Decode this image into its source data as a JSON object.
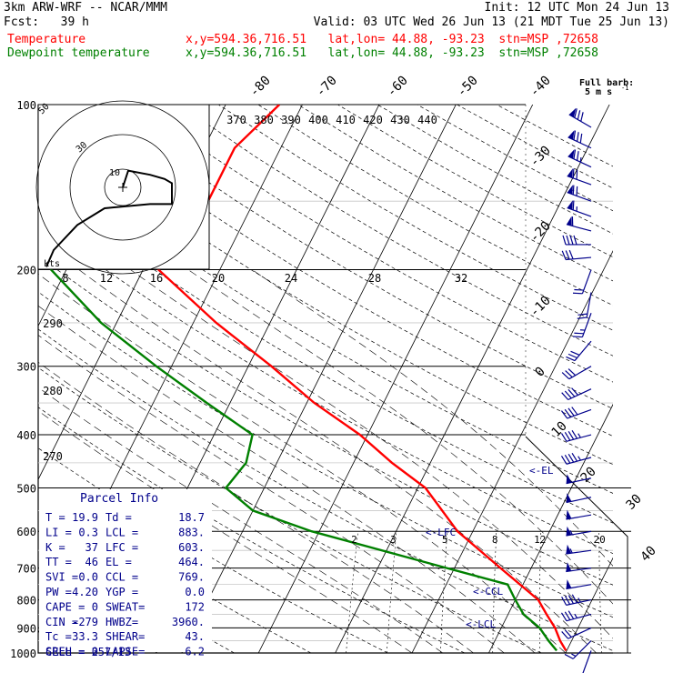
{
  "header": {
    "model": "3km ARW-WRF -- NCAR/MMM",
    "init": "Init: 12 UTC Mon 24 Jun 13",
    "fcst": "Fcst:   39 h",
    "valid": "Valid: 03 UTC Wed 26 Jun 13 (21 MDT Tue 25 Jun 13)",
    "temp_label": "Temperature",
    "temp_loc": "x,y=594.36,716.51   lat,lon= 44.88, -93.23  stn=MSP ,72658",
    "dew_label": "Dewpoint temperature",
    "dew_loc": "x,y=594.36,716.51   lat,lon= 44.88, -93.23  stn=MSP ,72658"
  },
  "colors": {
    "temperature": "#ff0000",
    "dewpoint": "#008000",
    "wind": "#00008b",
    "text_blue": "#00008b",
    "axes": "#000000",
    "hodo_label": "#0000aa"
  },
  "chart_data": {
    "type": "line",
    "title": "",
    "ylabel": "",
    "y_scale": "log-pressure",
    "ylim": [
      1000,
      100
    ],
    "xlim": [
      -40,
      40
    ],
    "pressure_labels": [
      "100",
      "200",
      "300",
      "400",
      "500",
      "600",
      "700",
      "800",
      "900",
      "1000"
    ],
    "pressure_values": [
      100,
      200,
      300,
      400,
      500,
      600,
      700,
      800,
      900,
      1000
    ],
    "temp_ticks_top": [
      "-80",
      "-70",
      "-60",
      "-50",
      "-40"
    ],
    "temp_ticks_right": [
      "-30",
      "-20",
      "-10",
      "0",
      "10",
      "20",
      "30",
      "40"
    ],
    "theta_labels": [
      "370",
      "380",
      "390",
      "400",
      "410",
      "420",
      "430",
      "440"
    ],
    "thetae_labels": [
      "290",
      "280",
      "270"
    ],
    "mixing_ratio_labels": [
      "2",
      "3",
      "5",
      "8",
      "12",
      "20"
    ],
    "mixing_ratio_values": [
      2,
      3,
      5,
      8,
      12,
      20
    ],
    "series": [
      {
        "name": "Temperature",
        "points": [
          [
            100,
            -53
          ],
          [
            120,
            -56
          ],
          [
            150,
            -56
          ],
          [
            175,
            -59
          ],
          [
            190,
            -60
          ],
          [
            200,
            -58
          ],
          [
            250,
            -47
          ],
          [
            300,
            -37
          ],
          [
            350,
            -29
          ],
          [
            400,
            -21
          ],
          [
            450,
            -15
          ],
          [
            500,
            -9
          ],
          [
            600,
            -2
          ],
          [
            700,
            6
          ],
          [
            800,
            13
          ],
          [
            850,
            15
          ],
          [
            900,
            17
          ],
          [
            950,
            18.5
          ],
          [
            990,
            19.9
          ]
        ]
      },
      {
        "name": "Dewpoint temperature",
        "points": [
          [
            100,
            -78
          ],
          [
            120,
            -79
          ],
          [
            150,
            -81
          ],
          [
            160,
            -80
          ],
          [
            175,
            -77
          ],
          [
            190,
            -73
          ],
          [
            200,
            -72
          ],
          [
            250,
            -62
          ],
          [
            300,
            -52
          ],
          [
            350,
            -43
          ],
          [
            400,
            -35
          ],
          [
            450,
            -34
          ],
          [
            500,
            -35
          ],
          [
            550,
            -30
          ],
          [
            600,
            -21
          ],
          [
            700,
            -1
          ],
          [
            750,
            8
          ],
          [
            800,
            10
          ],
          [
            850,
            12
          ],
          [
            900,
            15
          ],
          [
            950,
            17
          ],
          [
            990,
            18.7
          ]
        ]
      }
    ],
    "wind_barbs": [
      {
        "p": 110,
        "dir": 300,
        "spd_ms": 40
      },
      {
        "p": 120,
        "dir": 295,
        "spd_ms": 40
      },
      {
        "p": 130,
        "dir": 295,
        "spd_ms": 38
      },
      {
        "p": 140,
        "dir": 290,
        "spd_ms": 37
      },
      {
        "p": 150,
        "dir": 290,
        "spd_ms": 35
      },
      {
        "p": 160,
        "dir": 290,
        "spd_ms": 33
      },
      {
        "p": 170,
        "dir": 285,
        "spd_ms": 30
      },
      {
        "p": 180,
        "dir": 270,
        "spd_ms": 22
      },
      {
        "p": 190,
        "dir": 265,
        "spd_ms": 17
      },
      {
        "p": 200,
        "dir": 200,
        "spd_ms": 10
      },
      {
        "p": 220,
        "dir": 190,
        "spd_ms": 12
      },
      {
        "p": 240,
        "dir": 200,
        "spd_ms": 13
      },
      {
        "p": 270,
        "dir": 220,
        "spd_ms": 15
      },
      {
        "p": 300,
        "dir": 240,
        "spd_ms": 17
      },
      {
        "p": 330,
        "dir": 245,
        "spd_ms": 20
      },
      {
        "p": 360,
        "dir": 250,
        "spd_ms": 22
      },
      {
        "p": 400,
        "dir": 255,
        "spd_ms": 23
      },
      {
        "p": 440,
        "dir": 255,
        "spd_ms": 24
      },
      {
        "p": 480,
        "dir": 258,
        "spd_ms": 25
      },
      {
        "p": 520,
        "dir": 258,
        "spd_ms": 25
      },
      {
        "p": 560,
        "dir": 260,
        "spd_ms": 27
      },
      {
        "p": 600,
        "dir": 260,
        "spd_ms": 28
      },
      {
        "p": 650,
        "dir": 262,
        "spd_ms": 28
      },
      {
        "p": 700,
        "dir": 262,
        "spd_ms": 27
      },
      {
        "p": 750,
        "dir": 260,
        "spd_ms": 25
      },
      {
        "p": 800,
        "dir": 258,
        "spd_ms": 23
      },
      {
        "p": 850,
        "dir": 255,
        "spd_ms": 18
      },
      {
        "p": 900,
        "dir": 245,
        "spd_ms": 12
      },
      {
        "p": 950,
        "dir": 225,
        "spd_ms": 8
      },
      {
        "p": 990,
        "dir": 200,
        "spd_ms": 5
      }
    ],
    "levels": {
      "el": "<-EL",
      "lfc": "<-LFC",
      "ccl": "<-CCL",
      "lcl": "<-LCL"
    },
    "barb_legend": {
      "line1": "Full barb:",
      "line2": "5 m s",
      "exp": "-1"
    },
    "hodograph": {
      "units": "kts",
      "ring_labels": [
        "10",
        "30",
        "50"
      ],
      "points": [
        [
          0,
          0
        ],
        [
          3,
          -8
        ],
        [
          15,
          -6
        ],
        [
          23,
          -4
        ],
        [
          27,
          -2
        ],
        [
          27,
          8
        ],
        [
          15,
          8
        ],
        [
          -10,
          10
        ],
        [
          -25,
          18
        ],
        [
          -38,
          30
        ],
        [
          -42,
          38
        ]
      ]
    },
    "isotherm_labels_box": [
      "8",
      "12",
      "16",
      "20",
      "24",
      "28",
      "32"
    ]
  },
  "parcel": {
    "title": "Parcel Info",
    "rows": [
      [
        "T   =",
        "19.9",
        "Td =",
        "18.7"
      ],
      [
        "LI  =",
        "0.3",
        "LCL =",
        "883."
      ],
      [
        "K   =",
        "37",
        "LFC =",
        "603."
      ],
      [
        "TT  =",
        "46",
        "EL  =",
        "464."
      ],
      [
        "SVI =",
        "0.0",
        "CCL =",
        "769."
      ],
      [
        "PW  =",
        "4.20",
        "YGP =",
        "0.0"
      ],
      [
        "CAPE =",
        "0",
        "SWEAT=",
        "172"
      ],
      [
        "CIN =",
        "-279",
        "HWBZ=",
        "3960."
      ],
      [
        "Tc  =",
        "33.3",
        "SHEAR=",
        "43."
      ],
      [
        "SREH =",
        "0",
        "LAPSE=",
        "6.2"
      ]
    ],
    "cell": "CELL = 257/13"
  }
}
